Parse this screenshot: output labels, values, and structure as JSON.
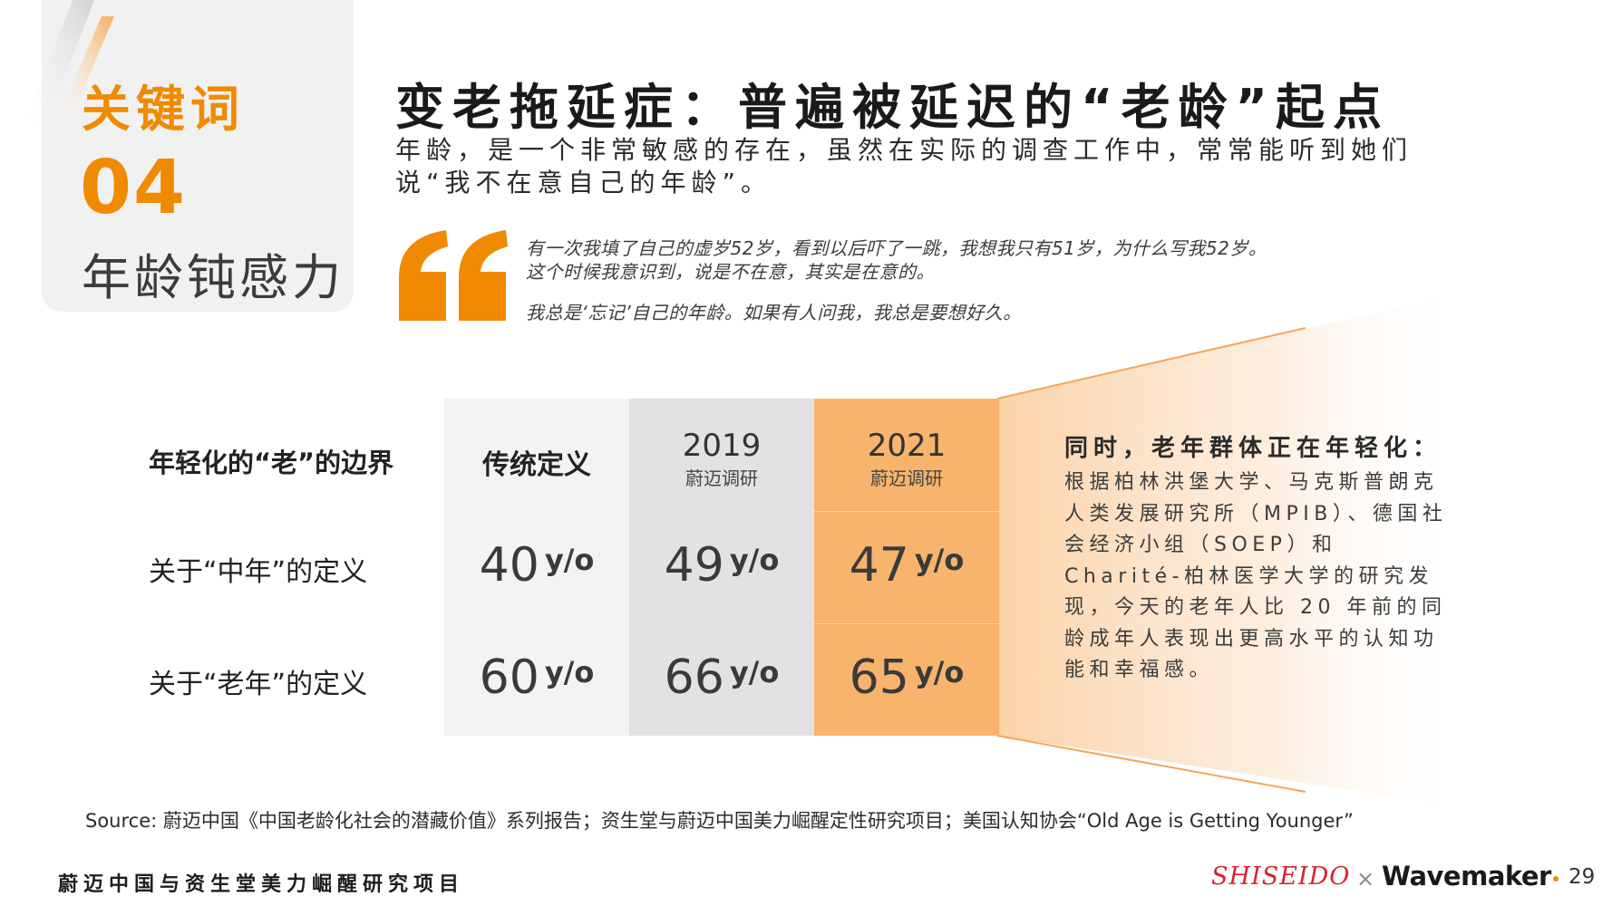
{
  "keyword": {
    "label": "关键词",
    "number": "04",
    "subtitle": "年龄钝感力"
  },
  "title": "变老拖延症：普遍被延迟的“老龄”起点",
  "intro": "年龄，是一个非常敏感的存在，虽然在实际的调查工作中，常常能听到她们说“我不在意自己的年龄”。",
  "quotes": [
    "有一次我填了自己的虚岁52岁，看到以后吓了一跳，我想我只有51岁，为什么写我52岁。",
    "这个时候我意识到，说是不在意，其实是在意的。",
    "我总是‘忘记’自己的年龄。如果有人问我，我总是要想好久。"
  ],
  "table": {
    "header_label": "年轻化的“老”的边界",
    "col_traditional": "传统定义",
    "col_2019": {
      "year": "2019",
      "sub": "蔚迈调研"
    },
    "col_2021": {
      "year": "2021",
      "sub": "蔚迈调研"
    },
    "unit": "y/o",
    "rows": [
      {
        "label": "关于“中年”的定义",
        "traditional": "40",
        "y2019": "49",
        "y2021": "47"
      },
      {
        "label": "关于“老年”的定义",
        "traditional": "60",
        "y2019": "66",
        "y2021": "65"
      }
    ]
  },
  "side": {
    "title": "同时，老年群体正在年轻化：",
    "body": "根据柏林洪堡大学、马克斯普朗克人类发展研究所（MPIB）、德国社会经济小组（SOEP）和Charité-柏林医学大学的研究发现，今天的老年人比 20 年前的同龄成年人表现出更高水平的认知功能和幸福感。"
  },
  "source": "Source: 蔚迈中国《中国老龄化社会的潜藏价值》系列报告；资生堂与蔚迈中国美力崛醒定性研究项目；美国认知协会“Old Age is Getting Younger”",
  "footer": {
    "left": "蔚迈中国与资生堂美力崛醒研究项目",
    "logo_shiseido": "SHISEIDO",
    "logo_x": "×",
    "logo_wavemaker": "Wavemaker",
    "page": "29"
  },
  "colors": {
    "accent": "#f08a00",
    "highlight_col": "#f8b36d",
    "mid_col": "#e2e2e2",
    "light_col": "#f3f3f3"
  }
}
